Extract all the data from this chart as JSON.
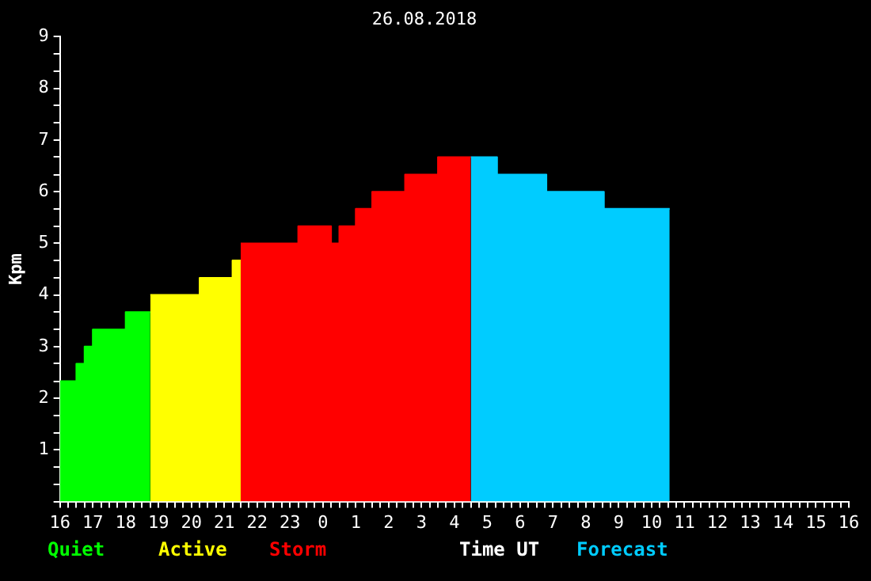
{
  "chart_data": {
    "type": "area",
    "title": "26.08.2018",
    "xlabel": "Time UT",
    "ylabel": "Kpm",
    "grid": false,
    "xlim": [
      "2018-08-25T16:00",
      "2018-08-26T16:00"
    ],
    "ylim": [
      0,
      9
    ],
    "xticks": [
      {
        "value": "2018-08-25T16:00",
        "label": "16"
      },
      {
        "value": "2018-08-25T16:15",
        "label": null
      },
      {
        "value": "2018-08-25T16:30",
        "label": null
      },
      {
        "value": "2018-08-25T16:45",
        "label": null
      },
      {
        "value": "2018-08-25T17:00",
        "label": "17"
      },
      {
        "value": "2018-08-25T17:15",
        "label": null
      },
      {
        "value": "2018-08-25T17:30",
        "label": null
      },
      {
        "value": "2018-08-25T17:45",
        "label": null
      },
      {
        "value": "2018-08-25T18:00",
        "label": "18"
      },
      {
        "value": "2018-08-25T18:15",
        "label": null
      },
      {
        "value": "2018-08-25T18:30",
        "label": null
      },
      {
        "value": "2018-08-25T18:45",
        "label": null
      },
      {
        "value": "2018-08-25T19:00",
        "label": "19"
      },
      {
        "value": "2018-08-25T19:15",
        "label": null
      },
      {
        "value": "2018-08-25T19:30",
        "label": null
      },
      {
        "value": "2018-08-25T19:45",
        "label": null
      },
      {
        "value": "2018-08-25T20:00",
        "label": "20"
      },
      {
        "value": "2018-08-25T20:15",
        "label": null
      },
      {
        "value": "2018-08-25T20:30",
        "label": null
      },
      {
        "value": "2018-08-25T20:45",
        "label": null
      },
      {
        "value": "2018-08-25T21:00",
        "label": "21"
      },
      {
        "value": "2018-08-25T21:15",
        "label": null
      },
      {
        "value": "2018-08-25T21:30",
        "label": null
      },
      {
        "value": "2018-08-25T21:45",
        "label": null
      },
      {
        "value": "2018-08-25T22:00",
        "label": "22"
      },
      {
        "value": "2018-08-25T22:15",
        "label": null
      },
      {
        "value": "2018-08-25T22:30",
        "label": null
      },
      {
        "value": "2018-08-25T22:45",
        "label": null
      },
      {
        "value": "2018-08-25T23:00",
        "label": "23"
      },
      {
        "value": "2018-08-25T23:15",
        "label": null
      },
      {
        "value": "2018-08-25T23:30",
        "label": null
      },
      {
        "value": "2018-08-25T23:45",
        "label": null
      },
      {
        "value": "2018-08-26T00:00",
        "label": "0"
      },
      {
        "value": "2018-08-26T00:15",
        "label": null
      },
      {
        "value": "2018-08-26T00:30",
        "label": null
      },
      {
        "value": "2018-08-26T00:45",
        "label": null
      },
      {
        "value": "2018-08-26T01:00",
        "label": "1"
      },
      {
        "value": "2018-08-26T01:15",
        "label": null
      },
      {
        "value": "2018-08-26T01:30",
        "label": null
      },
      {
        "value": "2018-08-26T01:45",
        "label": null
      },
      {
        "value": "2018-08-26T02:00",
        "label": "2"
      },
      {
        "value": "2018-08-26T02:15",
        "label": null
      },
      {
        "value": "2018-08-26T02:30",
        "label": null
      },
      {
        "value": "2018-08-26T02:45",
        "label": null
      },
      {
        "value": "2018-08-26T03:00",
        "label": "3"
      },
      {
        "value": "2018-08-26T03:15",
        "label": null
      },
      {
        "value": "2018-08-26T03:30",
        "label": null
      },
      {
        "value": "2018-08-26T03:45",
        "label": null
      },
      {
        "value": "2018-08-26T04:00",
        "label": "4"
      },
      {
        "value": "2018-08-26T04:15",
        "label": null
      },
      {
        "value": "2018-08-26T04:30",
        "label": null
      },
      {
        "value": "2018-08-26T04:45",
        "label": null
      },
      {
        "value": "2018-08-26T05:00",
        "label": "5"
      },
      {
        "value": "2018-08-26T05:15",
        "label": null
      },
      {
        "value": "2018-08-26T05:30",
        "label": null
      },
      {
        "value": "2018-08-26T05:45",
        "label": null
      },
      {
        "value": "2018-08-26T06:00",
        "label": "6"
      },
      {
        "value": "2018-08-26T06:15",
        "label": null
      },
      {
        "value": "2018-08-26T06:30",
        "label": null
      },
      {
        "value": "2018-08-26T06:45",
        "label": null
      },
      {
        "value": "2018-08-26T07:00",
        "label": "7"
      },
      {
        "value": "2018-08-26T07:15",
        "label": null
      },
      {
        "value": "2018-08-26T07:30",
        "label": null
      },
      {
        "value": "2018-08-26T07:45",
        "label": null
      },
      {
        "value": "2018-08-26T08:00",
        "label": "8"
      },
      {
        "value": "2018-08-26T08:15",
        "label": null
      },
      {
        "value": "2018-08-26T08:30",
        "label": null
      },
      {
        "value": "2018-08-26T08:45",
        "label": null
      },
      {
        "value": "2018-08-26T09:00",
        "label": "9"
      },
      {
        "value": "2018-08-26T09:15",
        "label": null
      },
      {
        "value": "2018-08-26T09:30",
        "label": null
      },
      {
        "value": "2018-08-26T09:45",
        "label": null
      },
      {
        "value": "2018-08-26T10:00",
        "label": "10"
      },
      {
        "value": "2018-08-26T10:15",
        "label": null
      },
      {
        "value": "2018-08-26T10:30",
        "label": null
      },
      {
        "value": "2018-08-26T10:45",
        "label": null
      },
      {
        "value": "2018-08-26T11:00",
        "label": "11"
      },
      {
        "value": "2018-08-26T11:15",
        "label": null
      },
      {
        "value": "2018-08-26T11:30",
        "label": null
      },
      {
        "value": "2018-08-26T11:45",
        "label": null
      },
      {
        "value": "2018-08-26T12:00",
        "label": "12"
      },
      {
        "value": "2018-08-26T12:15",
        "label": null
      },
      {
        "value": "2018-08-26T12:30",
        "label": null
      },
      {
        "value": "2018-08-26T12:45",
        "label": null
      },
      {
        "value": "2018-08-26T13:00",
        "label": "13"
      },
      {
        "value": "2018-08-26T13:15",
        "label": null
      },
      {
        "value": "2018-08-26T13:30",
        "label": null
      },
      {
        "value": "2018-08-26T13:45",
        "label": null
      },
      {
        "value": "2018-08-26T14:00",
        "label": "14"
      },
      {
        "value": "2018-08-26T14:15",
        "label": null
      },
      {
        "value": "2018-08-26T14:30",
        "label": null
      },
      {
        "value": "2018-08-26T14:45",
        "label": null
      },
      {
        "value": "2018-08-26T15:00",
        "label": "15"
      },
      {
        "value": "2018-08-26T15:15",
        "label": null
      },
      {
        "value": "2018-08-26T15:30",
        "label": null
      },
      {
        "value": "2018-08-26T15:45",
        "label": null
      },
      {
        "value": "2018-08-26T16:00",
        "label": "16"
      }
    ],
    "yticks": [
      {
        "value": 0,
        "label": null
      },
      {
        "value": 0.33,
        "label": null
      },
      {
        "value": 0.67,
        "label": null
      },
      1,
      {
        "value": 1.33,
        "label": null
      },
      {
        "value": 1.67,
        "label": null
      },
      2,
      {
        "value": 2.33,
        "label": null
      },
      {
        "value": 2.67,
        "label": null
      },
      3,
      {
        "value": 3.33,
        "label": null
      },
      {
        "value": 3.67,
        "label": null
      },
      4,
      {
        "value": 4.33,
        "label": null
      },
      {
        "value": 4.67,
        "label": null
      },
      5,
      {
        "value": 5.33,
        "label": null
      },
      {
        "value": 5.67,
        "label": null
      },
      6,
      {
        "value": 6.33,
        "label": null
      },
      {
        "value": 6.67,
        "label": null
      },
      7,
      {
        "value": 7.33,
        "label": null
      },
      {
        "value": 7.67,
        "label": null
      },
      8,
      {
        "value": 8.33,
        "label": null
      },
      {
        "value": 8.67,
        "label": null
      },
      9
    ],
    "series": [
      {
        "name": "Quiet",
        "color": "#00ff00",
        "x": [
          "2018-08-25T16:00",
          "2018-08-25T16:30",
          "2018-08-25T16:30",
          "2018-08-25T16:45",
          "2018-08-25T16:45",
          "2018-08-25T17:00",
          "2018-08-25T17:00",
          "2018-08-25T18:00",
          "2018-08-25T18:00",
          "2018-08-25T18:45"
        ],
        "values": [
          2.33,
          2.33,
          2.67,
          2.67,
          3,
          3,
          3.33,
          3.33,
          3.67,
          3.67
        ]
      },
      {
        "name": "Active",
        "color": "#ffff00",
        "x": [
          "2018-08-25T18:45",
          "2018-08-25T20:15",
          "2018-08-25T20:15",
          "2018-08-25T21:15",
          "2018-08-25T21:15",
          "2018-08-25T21:30"
        ],
        "values": [
          4,
          4,
          4.33,
          4.33,
          4.67,
          4.67
        ]
      },
      {
        "name": "Storm",
        "color": "#ff0000",
        "x": [
          "2018-08-25T21:30",
          "2018-08-25T23:15",
          "2018-08-25T23:15",
          "2018-08-26T00:15",
          "2018-08-26T00:15",
          "2018-08-26T00:30",
          "2018-08-26T00:30",
          "2018-08-26T01:00",
          "2018-08-26T01:00",
          "2018-08-26T01:30",
          "2018-08-26T01:30",
          "2018-08-26T02:30",
          "2018-08-26T02:30",
          "2018-08-26T03:30",
          "2018-08-26T03:30",
          "2018-08-26T04:30"
        ],
        "values": [
          5,
          5,
          5.33,
          5.33,
          5,
          5,
          5.33,
          5.33,
          5.67,
          5.67,
          6,
          6,
          6.33,
          6.33,
          6.67,
          6.67
        ]
      },
      {
        "name": "Forecast",
        "color": "#00ccff",
        "x": [
          "2018-08-26T04:30",
          "2018-08-26T05:18",
          "2018-08-26T05:18",
          "2018-08-26T06:48",
          "2018-08-26T06:48",
          "2018-08-26T08:33",
          "2018-08-26T08:33",
          "2018-08-26T10:33"
        ],
        "values": [
          6.67,
          6.67,
          6.33,
          6.33,
          6,
          6,
          5.67,
          5.67
        ]
      }
    ]
  }
}
